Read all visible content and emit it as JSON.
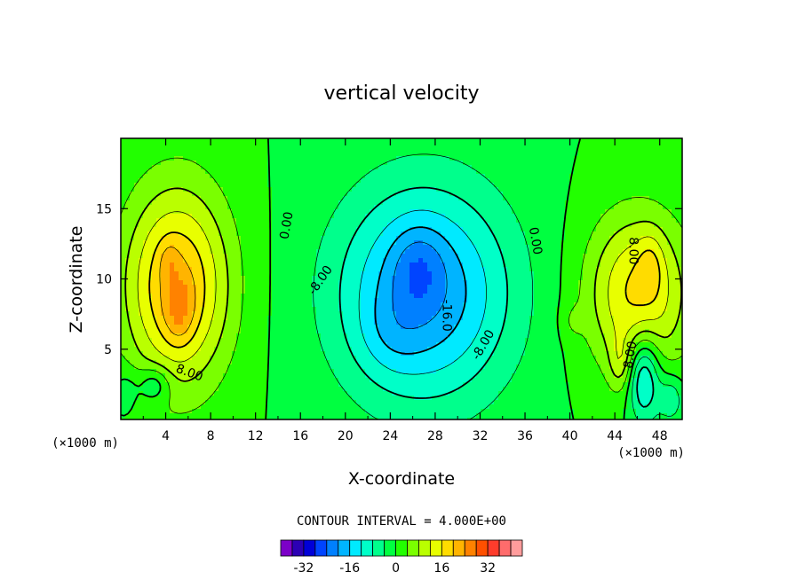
{
  "chart_data": {
    "type": "contour",
    "title": "vertical velocity",
    "xlabel": "X-coordinate",
    "ylabel": "Z-coordinate",
    "x_unit": "(×1000 m)",
    "y_unit": "(×1000 m)",
    "xlim": [
      0,
      50
    ],
    "ylim": [
      0,
      20
    ],
    "x_ticks": [
      4,
      8,
      12,
      16,
      20,
      24,
      28,
      32,
      36,
      40,
      44,
      48
    ],
    "y_ticks": [
      5,
      10,
      15
    ],
    "contour_interval_text": "CONTOUR INTERVAL = 4.000E+00",
    "contour_interval": 4,
    "contour_labels": [
      {
        "text": "0.00",
        "x": 14.8,
        "y": 13.8,
        "angle": -80
      },
      {
        "text": "0.00",
        "x": 36.9,
        "y": 12.7,
        "angle": 80
      },
      {
        "text": "8.00",
        "x": 6.1,
        "y": 3.3,
        "angle": 20
      },
      {
        "text": "8.00",
        "x": 45.6,
        "y": 12.0,
        "angle": 90
      },
      {
        "text": "8.00",
        "x": 45.4,
        "y": 4.6,
        "angle": -80
      },
      {
        "text": "-8.00",
        "x": 17.8,
        "y": 9.9,
        "angle": -55
      },
      {
        "text": "-8.00",
        "x": 32.3,
        "y": 5.3,
        "angle": -60
      },
      {
        "text": "-16.0",
        "x": 29.0,
        "y": 7.4,
        "angle": 90
      }
    ],
    "colorbar": {
      "tick_labels": [
        "-32",
        "-16",
        "0",
        "16",
        "32"
      ],
      "tick_values": [
        -32,
        -16,
        0,
        16,
        32
      ],
      "levels": [
        -40,
        -36,
        -32,
        -28,
        -24,
        -20,
        -16,
        -12,
        -8,
        -4,
        0,
        4,
        8,
        12,
        16,
        20,
        24,
        28,
        32,
        36,
        40
      ],
      "colors": [
        "#7c00c8",
        "#2c00b4",
        "#0000d8",
        "#0044ff",
        "#0080ff",
        "#00b4ff",
        "#00eaff",
        "#00ffc8",
        "#00ff8c",
        "#00ff40",
        "#22ff00",
        "#7aff00",
        "#baff00",
        "#e8ff00",
        "#ffdc00",
        "#ffb400",
        "#ff8200",
        "#ff5000",
        "#ff3c2c",
        "#ff6c6c",
        "#ff9c9c"
      ]
    },
    "features": [
      {
        "x": 5,
        "z": 9.5,
        "peak": 21,
        "sx": 3.3,
        "sz": 5.0
      },
      {
        "x": 5.2,
        "z": 7.8,
        "peak": 7,
        "sx": 0.9,
        "sz": 1.6
      },
      {
        "x": 4.3,
        "z": 11.2,
        "peak": 4,
        "sx": 0.6,
        "sz": 1.0
      },
      {
        "x": 3.0,
        "z": 2.5,
        "peak": -8,
        "sx": 1.0,
        "sz": 0.9
      },
      {
        "x": 0.5,
        "z": 2.0,
        "peak": -4,
        "sx": 0.8,
        "sz": 1.2
      },
      {
        "x": 27,
        "z": 9.0,
        "peak": -20,
        "sx": 5.5,
        "sz": 5.5
      },
      {
        "x": 26.5,
        "z": 10.8,
        "peak": -6,
        "sx": 1.6,
        "sz": 2.0
      },
      {
        "x": 24,
        "z": 6,
        "peak": -3,
        "sx": 2.0,
        "sz": 2.0
      },
      {
        "x": 46,
        "z": 9.0,
        "peak": 17,
        "sx": 3.2,
        "sz": 4.0
      },
      {
        "x": 47.2,
        "z": 11.0,
        "peak": 5,
        "sx": 0.8,
        "sz": 1.6
      },
      {
        "x": 40.2,
        "z": 7.0,
        "peak": 3,
        "sx": 0.7,
        "sz": 0.9
      },
      {
        "x": 46.6,
        "z": 3.0,
        "peak": -16,
        "sx": 1.0,
        "sz": 2.2
      },
      {
        "x": 49,
        "z": 1.5,
        "peak": -8,
        "sx": 0.8,
        "sz": 1.2
      },
      {
        "x": 44.5,
        "z": 4.0,
        "peak": 6,
        "sx": 0.7,
        "sz": 1.4
      }
    ]
  }
}
